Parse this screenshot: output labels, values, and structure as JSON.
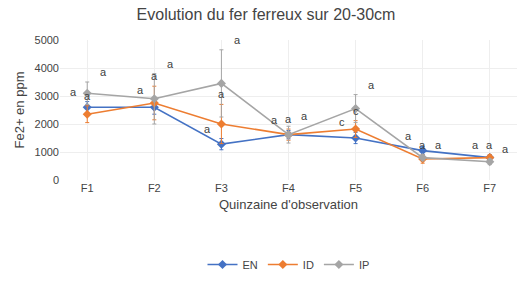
{
  "chart_data": {
    "type": "line",
    "title": "Evolution du fer ferreux sur 20-30cm",
    "x_label": "Quinzaine d'observation",
    "y_label": "Fe2+ en ppm",
    "categories": [
      "F1",
      "F2",
      "F3",
      "F4",
      "F5",
      "F6",
      "F7"
    ],
    "series": [
      {
        "name": "EN",
        "color": "#4472C4",
        "values": [
          2600,
          2600,
          1280,
          1620,
          1500,
          1050,
          800
        ],
        "error": [
          200,
          250,
          200,
          150,
          200,
          150,
          100
        ],
        "annotations": [
          "a",
          "a",
          "a",
          "a",
          "c",
          "a",
          "a"
        ]
      },
      {
        "name": "ID",
        "color": "#ED7D31",
        "values": [
          2350,
          2750,
          2000,
          1620,
          1820,
          750,
          800
        ],
        "error": [
          300,
          600,
          700,
          200,
          300,
          150,
          100
        ],
        "annotations": [
          "a",
          "a",
          "a",
          "a",
          "c",
          "a",
          "a"
        ]
      },
      {
        "name": "IP",
        "color": "#A5A5A5",
        "values": [
          3100,
          2900,
          3450,
          1620,
          2550,
          800,
          650
        ],
        "error": [
          400,
          900,
          1200,
          300,
          500,
          100,
          100
        ],
        "annotations": [
          "a",
          "a",
          "a",
          "a",
          "a",
          "a",
          "a"
        ]
      }
    ],
    "ylim": [
      0,
      5000
    ],
    "yticks": [
      0,
      1000,
      2000,
      3000,
      4000,
      5000
    ],
    "marker": "diamond",
    "line_style": "solid",
    "grid": true,
    "legend": "bottom"
  }
}
